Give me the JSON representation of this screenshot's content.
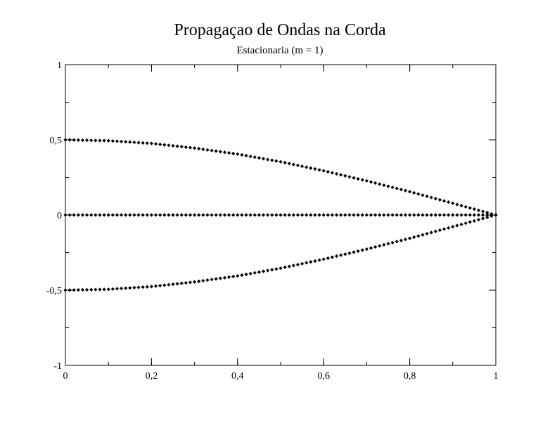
{
  "chart_data": {
    "type": "scatter",
    "title": "Propagaçao de Ondas na Corda",
    "subtitle": "Estacionaria (m = 1)",
    "xlabel": "",
    "ylabel": "",
    "xlim": [
      0,
      1
    ],
    "ylim": [
      -1,
      1
    ],
    "grid": false,
    "legend": "none",
    "marker_color": "#000000",
    "x_ticks": [
      {
        "value": 0,
        "label": "0"
      },
      {
        "value": 0.2,
        "label": "0,2"
      },
      {
        "value": 0.4,
        "label": "0,4"
      },
      {
        "value": 0.6,
        "label": "0,6"
      },
      {
        "value": 0.8,
        "label": "0,8"
      },
      {
        "value": 1,
        "label": "1"
      }
    ],
    "y_ticks": [
      {
        "value": -1,
        "label": "-1"
      },
      {
        "value": -0.5,
        "label": "-0,5"
      },
      {
        "value": 0,
        "label": "0"
      },
      {
        "value": 0.5,
        "label": "0,5"
      },
      {
        "value": 1,
        "label": "1"
      }
    ],
    "x_minor_step": 0.1,
    "y_minor_step": 0.25,
    "series": [
      {
        "x": [
          0,
          0.1,
          0.2,
          0.3,
          0.4,
          0.5,
          0.6,
          0.7,
          0.8,
          0.9,
          1
        ],
        "y": [
          0.5,
          0.494,
          0.476,
          0.445,
          0.405,
          0.354,
          0.294,
          0.227,
          0.155,
          0.078,
          0
        ]
      },
      {
        "x": [
          0,
          0.1,
          0.2,
          0.3,
          0.4,
          0.5,
          0.6,
          0.7,
          0.8,
          0.9,
          1
        ],
        "y": [
          0,
          0,
          0,
          0,
          0,
          0,
          0,
          0,
          0,
          0,
          0
        ]
      },
      {
        "x": [
          0,
          0.1,
          0.2,
          0.3,
          0.4,
          0.5,
          0.6,
          0.7,
          0.8,
          0.9,
          1
        ],
        "y": [
          -0.5,
          -0.494,
          -0.476,
          -0.445,
          -0.405,
          -0.354,
          -0.294,
          -0.227,
          -0.155,
          -0.078,
          0
        ]
      }
    ]
  }
}
